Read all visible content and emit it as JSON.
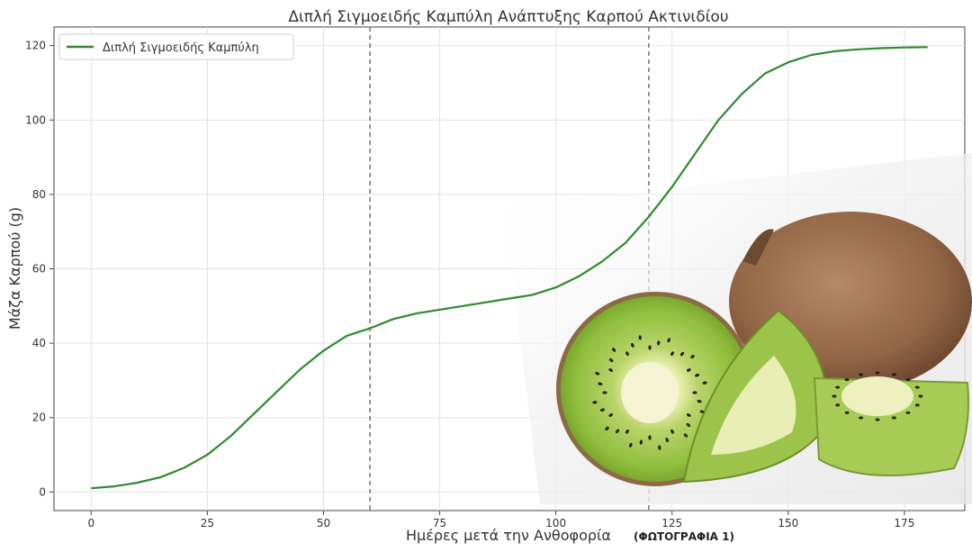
{
  "chart_data": {
    "type": "line",
    "title": "Διπλή Σιγμοειδής Καμπύλη Ανάπτυξης Καρπού Ακτινιδίου",
    "xlabel": "Ημέρες μετά την Ανθοφορία",
    "ylabel": "Μάζα Καρπού (g)",
    "xlim": [
      -8,
      188
    ],
    "ylim": [
      -5,
      125
    ],
    "xticks": [
      0,
      25,
      50,
      75,
      100,
      125,
      150,
      175
    ],
    "yticks": [
      0,
      20,
      40,
      60,
      80,
      100,
      120
    ],
    "grid": true,
    "legend_position": "top-left",
    "vlines": [
      60,
      120
    ],
    "series": [
      {
        "name": "Διπλή Σιγμοειδής Καμπύλη",
        "color": "#2e8b2e",
        "x": [
          0,
          5,
          10,
          15,
          20,
          25,
          30,
          35,
          40,
          45,
          50,
          55,
          60,
          65,
          70,
          75,
          80,
          85,
          90,
          95,
          100,
          105,
          110,
          115,
          120,
          125,
          130,
          135,
          140,
          145,
          150,
          155,
          160,
          165,
          170,
          175,
          180
        ],
        "y": [
          1,
          1.5,
          2.5,
          4,
          6.5,
          10,
          15,
          21,
          27,
          33,
          38,
          42,
          44,
          46.5,
          48,
          49,
          50,
          51,
          52,
          53,
          55,
          58,
          62,
          67,
          74,
          82,
          91,
          100,
          107,
          112.5,
          115.5,
          117.5,
          118.5,
          119,
          119.3,
          119.5,
          119.6
        ]
      }
    ]
  },
  "photo_caption": "(ΦΩΤΟΓΡΑΦΙΑ 1)",
  "photo_alt": "kiwi-fruit-photo"
}
